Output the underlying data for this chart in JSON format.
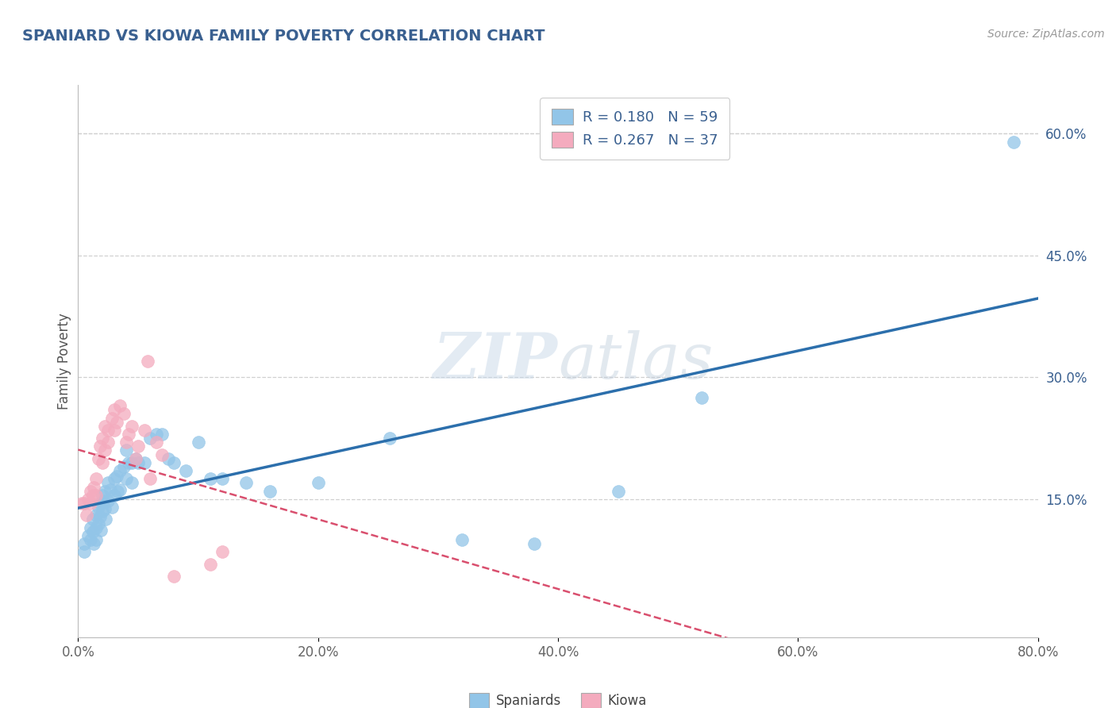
{
  "title": "SPANIARD VS KIOWA FAMILY POVERTY CORRELATION CHART",
  "source": "Source: ZipAtlas.com",
  "ylabel": "Family Poverty",
  "watermark": "ZIPatlas",
  "spaniards_R": 0.18,
  "spaniards_N": 59,
  "kiowa_R": 0.267,
  "kiowa_N": 37,
  "xlim": [
    0.0,
    0.8
  ],
  "ylim": [
    -0.02,
    0.66
  ],
  "xticks": [
    0.0,
    0.2,
    0.4,
    0.6,
    0.8
  ],
  "xtick_labels": [
    "0.0%",
    "20.0%",
    "40.0%",
    "60.0%",
    "80.0%"
  ],
  "yticks_right": [
    0.15,
    0.3,
    0.45,
    0.6
  ],
  "ytick_labels_right": [
    "15.0%",
    "30.0%",
    "45.0%",
    "60.0%"
  ],
  "blue_color": "#92C5E8",
  "pink_color": "#F4ABBE",
  "blue_line_color": "#2C6FAC",
  "pink_line_color": "#D94F6E",
  "text_color": "#3A6090",
  "spaniards_x": [
    0.005,
    0.005,
    0.008,
    0.01,
    0.01,
    0.012,
    0.012,
    0.013,
    0.015,
    0.015,
    0.015,
    0.017,
    0.017,
    0.018,
    0.018,
    0.019,
    0.02,
    0.02,
    0.021,
    0.022,
    0.022,
    0.023,
    0.025,
    0.025,
    0.027,
    0.028,
    0.03,
    0.03,
    0.032,
    0.033,
    0.035,
    0.035,
    0.038,
    0.04,
    0.04,
    0.042,
    0.045,
    0.045,
    0.048,
    0.05,
    0.055,
    0.06,
    0.065,
    0.07,
    0.075,
    0.08,
    0.09,
    0.1,
    0.11,
    0.12,
    0.14,
    0.16,
    0.2,
    0.26,
    0.32,
    0.38,
    0.45,
    0.52,
    0.78
  ],
  "spaniards_y": [
    0.095,
    0.085,
    0.105,
    0.115,
    0.1,
    0.125,
    0.11,
    0.095,
    0.13,
    0.115,
    0.1,
    0.14,
    0.12,
    0.145,
    0.128,
    0.112,
    0.155,
    0.135,
    0.148,
    0.16,
    0.138,
    0.125,
    0.17,
    0.148,
    0.162,
    0.14,
    0.175,
    0.155,
    0.178,
    0.16,
    0.185,
    0.162,
    0.19,
    0.21,
    0.175,
    0.195,
    0.195,
    0.17,
    0.2,
    0.195,
    0.195,
    0.225,
    0.23,
    0.23,
    0.2,
    0.195,
    0.185,
    0.22,
    0.175,
    0.175,
    0.17,
    0.16,
    0.17,
    0.225,
    0.1,
    0.095,
    0.16,
    0.275,
    0.59
  ],
  "kiowa_x": [
    0.003,
    0.005,
    0.007,
    0.008,
    0.01,
    0.01,
    0.012,
    0.013,
    0.015,
    0.015,
    0.017,
    0.018,
    0.02,
    0.02,
    0.022,
    0.022,
    0.025,
    0.025,
    0.028,
    0.03,
    0.03,
    0.032,
    0.035,
    0.038,
    0.04,
    0.042,
    0.045,
    0.048,
    0.05,
    0.055,
    0.058,
    0.06,
    0.065,
    0.07,
    0.08,
    0.11,
    0.12
  ],
  "kiowa_y": [
    0.145,
    0.145,
    0.13,
    0.15,
    0.16,
    0.145,
    0.155,
    0.165,
    0.175,
    0.155,
    0.2,
    0.215,
    0.225,
    0.195,
    0.24,
    0.21,
    0.22,
    0.235,
    0.25,
    0.26,
    0.235,
    0.245,
    0.265,
    0.255,
    0.22,
    0.23,
    0.24,
    0.2,
    0.215,
    0.235,
    0.32,
    0.175,
    0.22,
    0.205,
    0.055,
    0.07,
    0.085
  ]
}
